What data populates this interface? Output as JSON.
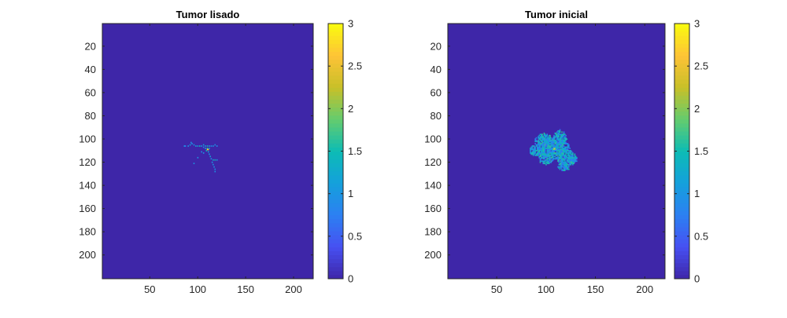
{
  "figure": {
    "background": "#ffffff"
  },
  "chart_data": [
    {
      "type": "heatmap",
      "title": "Tumor lisado",
      "xlabel": "",
      "ylabel": "",
      "grid_size": [
        220,
        220
      ],
      "xlim": [
        0.5,
        220.5
      ],
      "ylim": [
        0.5,
        220.5
      ],
      "y_direction": "reversed",
      "x_ticks": [
        50,
        100,
        150,
        200
      ],
      "y_ticks": [
        20,
        40,
        60,
        80,
        100,
        120,
        140,
        160,
        180,
        200
      ],
      "colorbar": {
        "range": [
          0,
          3
        ],
        "ticks": [
          "0",
          "0.5",
          "1",
          "1.5",
          "2",
          "2.5",
          "3"
        ]
      },
      "colormap": "parula",
      "background_value": 0,
      "background_color": "#3e26a8",
      "active_cells": [
        {
          "x": 93,
          "y": 103,
          "v": 1.0
        },
        {
          "x": 94,
          "y": 104,
          "v": 1.0
        },
        {
          "x": 96,
          "y": 105,
          "v": 1.0
        },
        {
          "x": 86,
          "y": 106,
          "v": 1.0
        },
        {
          "x": 87,
          "y": 106,
          "v": 0.8
        },
        {
          "x": 90,
          "y": 106,
          "v": 1.0
        },
        {
          "x": 92,
          "y": 105,
          "v": 1.2
        },
        {
          "x": 98,
          "y": 106,
          "v": 1.2
        },
        {
          "x": 100,
          "y": 106,
          "v": 1.0
        },
        {
          "x": 102,
          "y": 106,
          "v": 1.5
        },
        {
          "x": 104,
          "y": 106,
          "v": 1.0
        },
        {
          "x": 106,
          "y": 105,
          "v": 1.2
        },
        {
          "x": 108,
          "y": 106,
          "v": 1.0
        },
        {
          "x": 110,
          "y": 106,
          "v": 1.5
        },
        {
          "x": 112,
          "y": 106,
          "v": 1.0
        },
        {
          "x": 114,
          "y": 106,
          "v": 1.0
        },
        {
          "x": 116,
          "y": 106,
          "v": 1.0
        },
        {
          "x": 118,
          "y": 105,
          "v": 1.0
        },
        {
          "x": 120,
          "y": 106,
          "v": 0.9
        },
        {
          "x": 106,
          "y": 107,
          "v": 1.0
        },
        {
          "x": 108,
          "y": 108,
          "v": 1.2
        },
        {
          "x": 110,
          "y": 108,
          "v": 1.6
        },
        {
          "x": 110,
          "y": 109,
          "v": 2.8
        },
        {
          "x": 111,
          "y": 109,
          "v": 2.5
        },
        {
          "x": 112,
          "y": 108,
          "v": 1.2
        },
        {
          "x": 109,
          "y": 110,
          "v": 1.5
        },
        {
          "x": 111,
          "y": 111,
          "v": 1.2
        },
        {
          "x": 104,
          "y": 111,
          "v": 1.0
        },
        {
          "x": 106,
          "y": 112,
          "v": 1.0
        },
        {
          "x": 112,
          "y": 113,
          "v": 1.0
        },
        {
          "x": 113,
          "y": 115,
          "v": 1.2
        },
        {
          "x": 114,
          "y": 117,
          "v": 1.0
        },
        {
          "x": 116,
          "y": 118,
          "v": 1.2
        },
        {
          "x": 118,
          "y": 118,
          "v": 1.5
        },
        {
          "x": 120,
          "y": 118,
          "v": 1.0
        },
        {
          "x": 115,
          "y": 120,
          "v": 1.0
        },
        {
          "x": 116,
          "y": 122,
          "v": 1.0
        },
        {
          "x": 117,
          "y": 124,
          "v": 1.0
        },
        {
          "x": 118,
          "y": 126,
          "v": 1.0
        },
        {
          "x": 118,
          "y": 128,
          "v": 1.0
        },
        {
          "x": 100,
          "y": 116,
          "v": 1.0
        },
        {
          "x": 96,
          "y": 121,
          "v": 1.0
        }
      ]
    },
    {
      "type": "heatmap",
      "title": "Tumor inicial",
      "xlabel": "",
      "ylabel": "",
      "grid_size": [
        220,
        220
      ],
      "xlim": [
        0.5,
        220.5
      ],
      "ylim": [
        0.5,
        220.5
      ],
      "y_direction": "reversed",
      "x_ticks": [
        50,
        100,
        150,
        200
      ],
      "y_ticks": [
        20,
        40,
        60,
        80,
        100,
        120,
        140,
        160,
        180,
        200
      ],
      "colorbar": {
        "range": [
          0,
          3
        ],
        "ticks": [
          "0",
          "0.5",
          "1",
          "1.5",
          "2",
          "2.5",
          "3"
        ]
      },
      "colormap": "parula",
      "background_value": 0,
      "background_color": "#3e26a8",
      "blobs": [
        {
          "cx": 108,
          "cy": 108,
          "rx": 16,
          "ry": 10
        },
        {
          "cx": 98,
          "cy": 103,
          "rx": 10,
          "ry": 8
        },
        {
          "cx": 114,
          "cy": 100,
          "rx": 7,
          "ry": 8
        },
        {
          "cx": 90,
          "cy": 110,
          "rx": 7,
          "ry": 5
        },
        {
          "cx": 100,
          "cy": 117,
          "rx": 8,
          "ry": 5
        },
        {
          "cx": 120,
          "cy": 116,
          "rx": 10,
          "ry": 7
        },
        {
          "cx": 127,
          "cy": 118,
          "rx": 5,
          "ry": 4
        },
        {
          "cx": 118,
          "cy": 124,
          "rx": 6,
          "ry": 4
        }
      ],
      "blob_value_range": [
        0.6,
        1.7
      ],
      "peak_cells": [
        {
          "x": 108,
          "y": 108,
          "v": 2.8
        },
        {
          "x": 109,
          "y": 108,
          "v": 2.5
        },
        {
          "x": 108,
          "y": 109,
          "v": 2.6
        },
        {
          "x": 110,
          "y": 109,
          "v": 1.9
        },
        {
          "x": 104,
          "y": 106,
          "v": 1.8
        },
        {
          "x": 116,
          "y": 112,
          "v": 1.8
        }
      ]
    }
  ]
}
